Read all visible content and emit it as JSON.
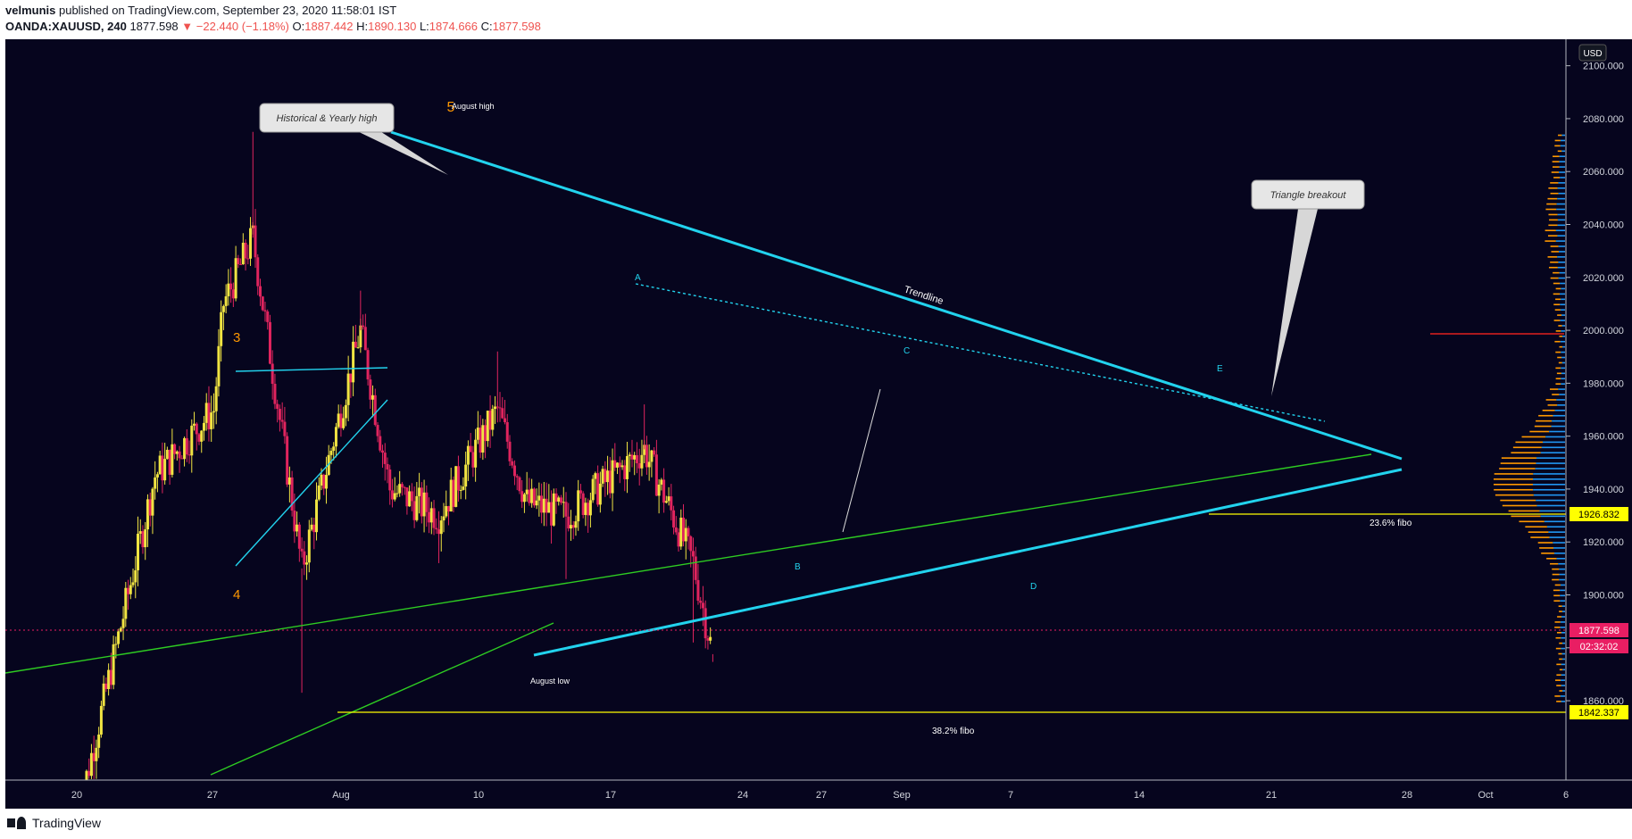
{
  "header": {
    "publisher": "velmunis",
    "published_text": "published on TradingView.com, September 23, 2020 11:58:01 IST",
    "symbol": "OANDA:XAUUSD, 240",
    "last": "1877.598",
    "change": "−22.440 (−1.18%)",
    "o_label": "O:",
    "o": "1887.442",
    "h_label": "H:",
    "h": "1890.130",
    "l_label": "L:",
    "l": "1874.666",
    "c_label": "C:",
    "c": "1877.598"
  },
  "currency_button": "USD",
  "footer": {
    "brand": "TradingView"
  },
  "colors": {
    "background": "#06051e",
    "bull": "#f0e442",
    "bear": "#e0245e",
    "trend": "#22d3ee",
    "green": "#2ecc22",
    "fibo": "#ffff00",
    "price_tag": "#e91e63"
  },
  "chart_data": {
    "type": "candlestick",
    "symbol": "OANDA:XAUUSD",
    "interval": "240",
    "ylim": [
      1830,
      2110
    ],
    "y_ticks": [
      "1860.000",
      "1880.000",
      "1900.000",
      "1920.000",
      "1940.000",
      "1960.000",
      "1980.000",
      "2000.000",
      "2020.000",
      "2040.000",
      "2060.000",
      "2080.000",
      "2100.000"
    ],
    "x_ticks": [
      "20",
      "27",
      "Aug",
      "10",
      "17",
      "24",
      "27",
      "Sep",
      "7",
      "14",
      "21",
      "28",
      "Oct",
      "6"
    ],
    "price_labels": {
      "fibo_236": "1926.832",
      "last_price": "1877.598",
      "countdown": "02:32:02",
      "fibo_382": "1842.337"
    },
    "key_points": [
      {
        "date": "2020-07-20",
        "close": 1815
      },
      {
        "date": "2020-07-24",
        "close": 1880
      },
      {
        "date": "2020-07-28",
        "close": 1945
      },
      {
        "date": "2020-08-03",
        "close": 1970
      },
      {
        "date": "2020-08-04",
        "close": 2010
      },
      {
        "date": "2020-08-07",
        "high": 2075,
        "close": 2035
      },
      {
        "date": "2020-08-12",
        "low": 1863,
        "close": 1910
      },
      {
        "date": "2020-08-18",
        "high": 2015,
        "close": 2000
      },
      {
        "date": "2020-08-21",
        "close": 1940
      },
      {
        "date": "2020-08-26",
        "low": 1912,
        "close": 1930
      },
      {
        "date": "2020-09-01",
        "high": 1992,
        "close": 1970
      },
      {
        "date": "2020-09-04",
        "close": 1935
      },
      {
        "date": "2020-09-08",
        "low": 1906,
        "close": 1930
      },
      {
        "date": "2020-09-16",
        "high": 1972,
        "close": 1955
      },
      {
        "date": "2020-09-21",
        "low": 1882,
        "close": 1912
      },
      {
        "date": "2020-09-23",
        "low": 1874.666,
        "close": 1877.598
      }
    ],
    "annotations": {
      "historical_high_callout": "Historical & Yearly high",
      "triangle_callout": "Triangle breakout",
      "august_high": "August high",
      "august_low": "August low",
      "trendline": "Trendline",
      "fibo_236_label": "23.6% fibo",
      "fibo_382_label": "38.2% fibo",
      "wave_3": "3",
      "wave_4": "4",
      "wave_5": "5",
      "point_a": "A",
      "point_b": "B",
      "point_c": "C",
      "point_d": "D",
      "point_e": "E"
    }
  }
}
